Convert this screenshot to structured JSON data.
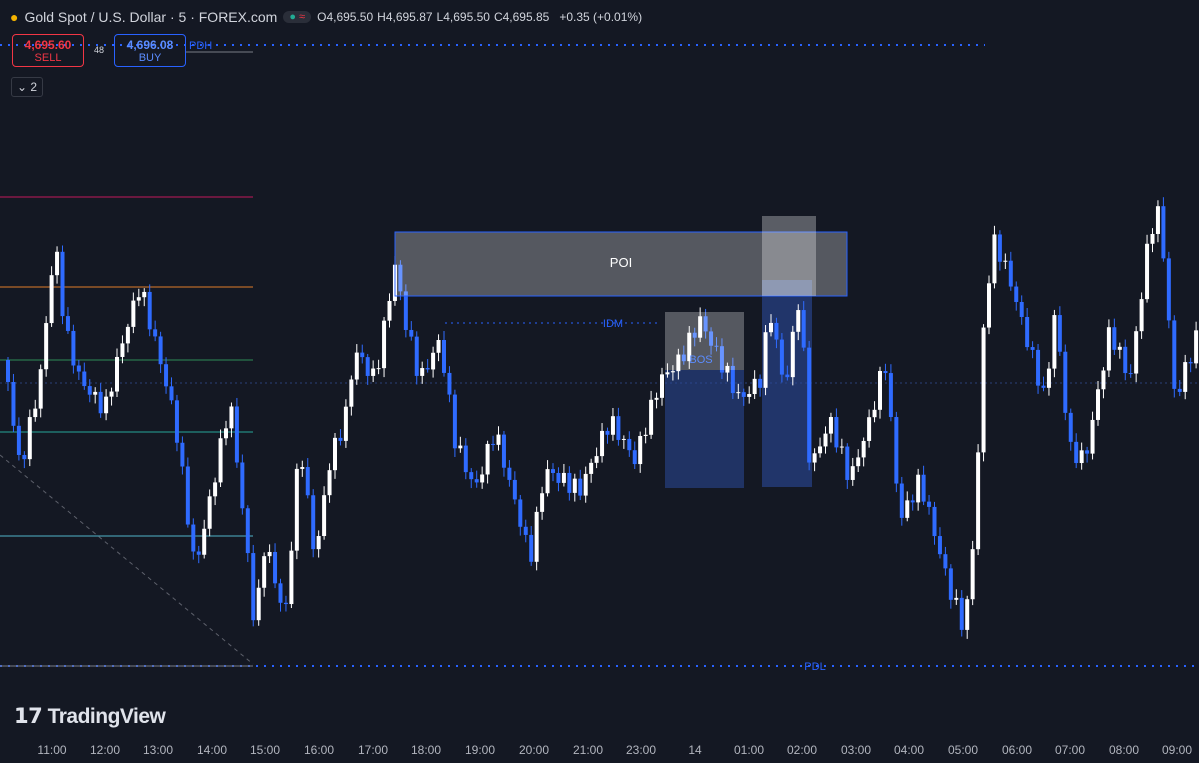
{
  "header": {
    "symbol": "Gold Spot / U.S. Dollar · 5 · FOREX.com",
    "ohlc": [
      {
        "key": "O",
        "value": "4,695.50"
      },
      {
        "key": "H",
        "value": "4,695.87"
      },
      {
        "key": "L",
        "value": "4,695.50"
      },
      {
        "key": "C",
        "value": "4,695.85"
      }
    ],
    "change": "+0.35 (+0.01%)"
  },
  "trade": {
    "sell_price": "4,695.60",
    "sell_label": "SELL",
    "spread": "48",
    "buy_price": "4,696.08",
    "buy_label": "BUY"
  },
  "indicators_toggle": "2",
  "annotations": {
    "poi": "POI",
    "idm": "IDM",
    "bos": "BOS",
    "pdh": "PDH",
    "pdl": "PDL"
  },
  "time_axis": [
    "11:00",
    "12:00",
    "13:00",
    "14:00",
    "15:00",
    "16:00",
    "17:00",
    "18:00",
    "19:00",
    "20:00",
    "21:00",
    "23:00",
    "14",
    "01:00",
    "02:00",
    "03:00",
    "04:00",
    "05:00",
    "06:00",
    "07:00",
    "08:00",
    "09:00"
  ],
  "watermark": "TradingView"
}
